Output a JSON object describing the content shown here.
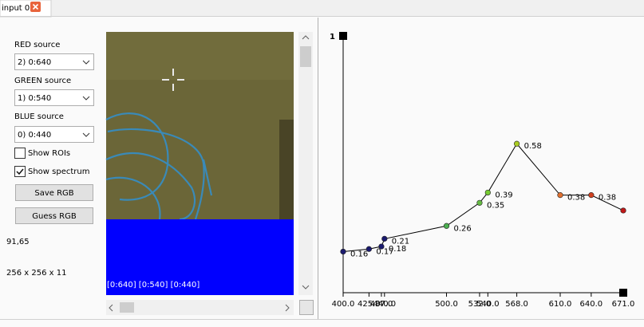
{
  "tab": {
    "title": "input 0"
  },
  "controls": {
    "red": {
      "label": "RED source",
      "value": "2) 0:640"
    },
    "green": {
      "label": "GREEN source",
      "value": "1) 0:540"
    },
    "blue": {
      "label": "BLUE source",
      "value": "0) 0:440"
    },
    "checkboxes": [
      {
        "label": "Show ROIs",
        "checked": false
      },
      {
        "label": "Show spectrum",
        "checked": true
      }
    ],
    "buttons": [
      "Save RGB",
      "Guess RGB"
    ],
    "cursor": "91,65",
    "dimensions": "256 x 256 x 11"
  },
  "image": {
    "overlay": "[0:640] [0:540] [0:440]"
  },
  "chart_data": {
    "type": "line",
    "x": [
      400,
      425,
      437,
      440,
      500,
      532,
      540,
      568,
      610,
      640,
      671
    ],
    "values": [
      0.16,
      0.17,
      0.18,
      0.21,
      0.26,
      0.35,
      0.39,
      0.58,
      0.38,
      0.38,
      0.32
    ],
    "value_labels": [
      "0.16",
      "0.17",
      "0.18",
      "0.21",
      "0.26",
      "0.35",
      "0.39",
      "0.58",
      "0.38",
      "0.38",
      null
    ],
    "colors": [
      "#1a1a6e",
      "#1a1a6e",
      "#1a1a6e",
      "#1a1a6e",
      "#4caf50",
      "#66bb44",
      "#77cc33",
      "#aacc22",
      "#e07030",
      "#d04020",
      "#c01818"
    ],
    "line_color": "#000000",
    "xlim": [
      400,
      671
    ],
    "xticks": [
      {
        "value": 400,
        "label": "400.0"
      },
      {
        "value": 425,
        "label": "425.0"
      },
      {
        "value": 437,
        "label": "437.0"
      },
      {
        "value": 440,
        "label": "440.0"
      },
      {
        "value": 500,
        "label": "500.0"
      },
      {
        "value": 532,
        "label": "532.0"
      },
      {
        "value": 540,
        "label": "540.0"
      },
      {
        "value": 568,
        "label": "568.0"
      },
      {
        "value": 610,
        "label": "610.0"
      },
      {
        "value": 640,
        "label": "640.0"
      },
      {
        "value": 671,
        "label": "671.0"
      }
    ],
    "ylim": [
      0,
      1
    ],
    "yticks": [
      1
    ]
  }
}
